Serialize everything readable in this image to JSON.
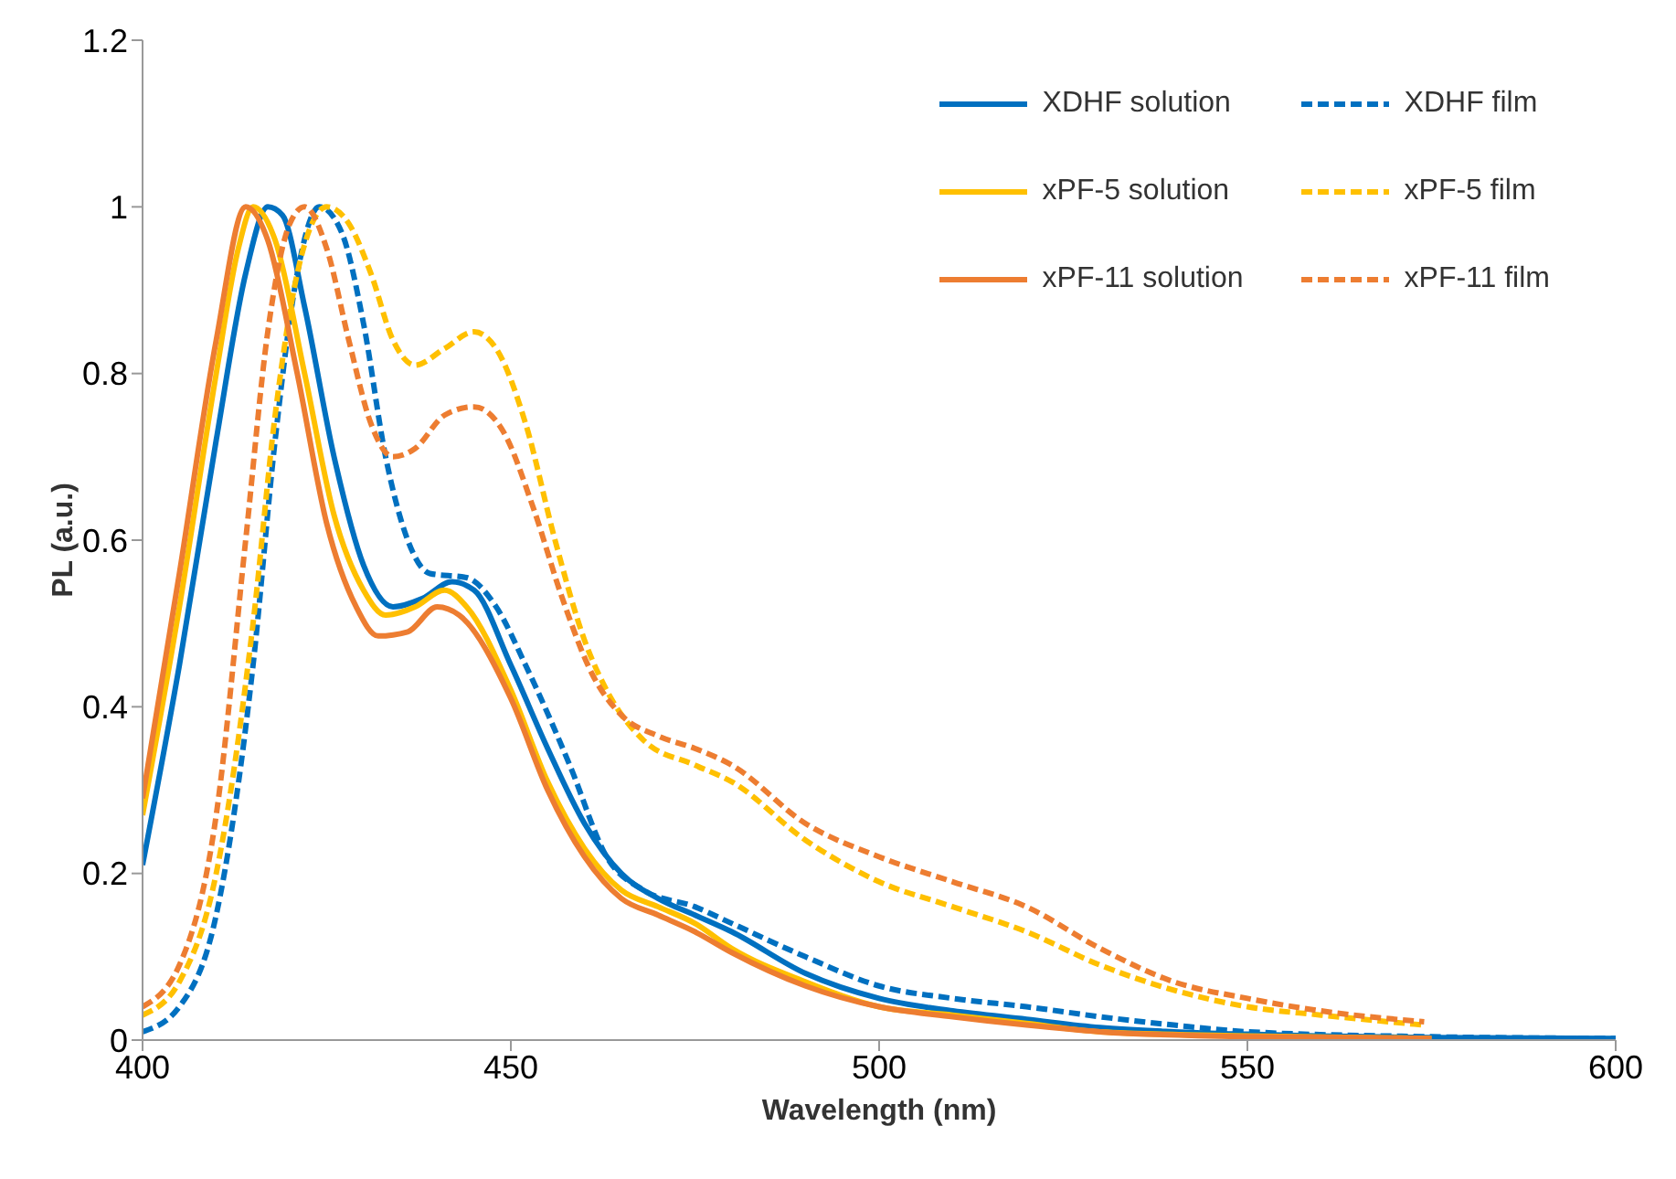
{
  "chart_data": {
    "type": "line",
    "xlabel": "Wavelength (nm)",
    "ylabel": "PL (a.u.)",
    "xlim": [
      400,
      600
    ],
    "xticks": [
      400,
      450,
      500,
      550,
      600
    ],
    "ylim": [
      0,
      1.2
    ],
    "yticks": [
      0,
      0.2,
      0.4,
      0.6,
      0.8,
      1,
      1.2
    ],
    "grid": false,
    "legend": "top right",
    "marker": "none",
    "series": [
      {
        "name": "XDHF solution",
        "color": "#0070c0",
        "line_style": "solid",
        "x": [
          400,
          405,
          410,
          414,
          417,
          419,
          422,
          426,
          430,
          434,
          438,
          442,
          445,
          450,
          455,
          460,
          465,
          470,
          475,
          480,
          490,
          500,
          510,
          520,
          530,
          540,
          550,
          575,
          600
        ],
        "values": [
          0.21,
          0.45,
          0.72,
          0.92,
          1.0,
          0.99,
          0.88,
          0.7,
          0.57,
          0.52,
          0.53,
          0.55,
          0.54,
          0.45,
          0.35,
          0.26,
          0.2,
          0.17,
          0.15,
          0.13,
          0.08,
          0.05,
          0.035,
          0.025,
          0.015,
          0.01,
          0.007,
          0.003,
          0.002
        ]
      },
      {
        "name": "XDHF film",
        "color": "#0070c0",
        "line_style": "dashed",
        "x": [
          400,
          405,
          410,
          415,
          418,
          421,
          424,
          427,
          430,
          433,
          436,
          439,
          444,
          448,
          452,
          458,
          463,
          468,
          475,
          480,
          490,
          500,
          510,
          520,
          530,
          540,
          550,
          575,
          600
        ],
        "values": [
          0.01,
          0.04,
          0.15,
          0.45,
          0.72,
          0.92,
          1.0,
          0.97,
          0.86,
          0.7,
          0.6,
          0.56,
          0.555,
          0.52,
          0.45,
          0.33,
          0.22,
          0.18,
          0.16,
          0.14,
          0.1,
          0.065,
          0.05,
          0.04,
          0.028,
          0.018,
          0.01,
          0.004,
          0.002
        ]
      },
      {
        "name": "xPF-5 solution",
        "color": "#ffc000",
        "line_style": "solid",
        "x": [
          400,
          405,
          410,
          413,
          415,
          418,
          422,
          426,
          430,
          433,
          437,
          441,
          444,
          450,
          455,
          460,
          465,
          470,
          475,
          480,
          490,
          500,
          510,
          520,
          530,
          550,
          575
        ],
        "values": [
          0.27,
          0.52,
          0.8,
          0.95,
          1.0,
          0.96,
          0.8,
          0.63,
          0.54,
          0.51,
          0.52,
          0.54,
          0.52,
          0.42,
          0.31,
          0.23,
          0.18,
          0.16,
          0.14,
          0.11,
          0.07,
          0.04,
          0.03,
          0.02,
          0.01,
          0.005,
          0.002
        ]
      },
      {
        "name": "xPF-5 film",
        "color": "#ffc000",
        "line_style": "dashed",
        "x": [
          400,
          405,
          410,
          415,
          418,
          421,
          425,
          428,
          431,
          434,
          437,
          441,
          445,
          448,
          452,
          456,
          460,
          463,
          468,
          475,
          480,
          490,
          500,
          510,
          520,
          530,
          540,
          550,
          560,
          574
        ],
        "values": [
          0.03,
          0.07,
          0.2,
          0.5,
          0.75,
          0.92,
          1.0,
          0.98,
          0.92,
          0.84,
          0.81,
          0.83,
          0.85,
          0.83,
          0.74,
          0.6,
          0.48,
          0.42,
          0.36,
          0.33,
          0.31,
          0.24,
          0.19,
          0.16,
          0.13,
          0.09,
          0.06,
          0.04,
          0.03,
          0.018
        ]
      },
      {
        "name": "xPF-11 solution",
        "color": "#ed7d31",
        "line_style": "solid",
        "x": [
          400,
          405,
          410,
          414,
          417,
          421,
          425,
          429,
          432,
          436,
          440,
          443,
          450,
          455,
          460,
          465,
          470,
          475,
          480,
          490,
          500,
          510,
          520,
          530,
          550,
          575
        ],
        "values": [
          0.29,
          0.56,
          0.84,
          1.0,
          0.96,
          0.8,
          0.62,
          0.52,
          0.485,
          0.49,
          0.52,
          0.51,
          0.41,
          0.3,
          0.22,
          0.17,
          0.15,
          0.13,
          0.105,
          0.065,
          0.04,
          0.028,
          0.018,
          0.01,
          0.004,
          0.002
        ]
      },
      {
        "name": "xPF-11 film",
        "color": "#ed7d31",
        "line_style": "dashed",
        "x": [
          400,
          405,
          410,
          414,
          417,
          420,
          422,
          425,
          428,
          431,
          434,
          437,
          441,
          445,
          449,
          453,
          457,
          461,
          465,
          470,
          475,
          480,
          490,
          500,
          510,
          520,
          530,
          540,
          550,
          560,
          574
        ],
        "values": [
          0.04,
          0.09,
          0.27,
          0.6,
          0.85,
          0.98,
          1.0,
          0.95,
          0.84,
          0.74,
          0.7,
          0.71,
          0.75,
          0.76,
          0.73,
          0.64,
          0.53,
          0.44,
          0.39,
          0.365,
          0.35,
          0.33,
          0.26,
          0.22,
          0.19,
          0.16,
          0.11,
          0.07,
          0.05,
          0.035,
          0.022
        ]
      }
    ]
  }
}
